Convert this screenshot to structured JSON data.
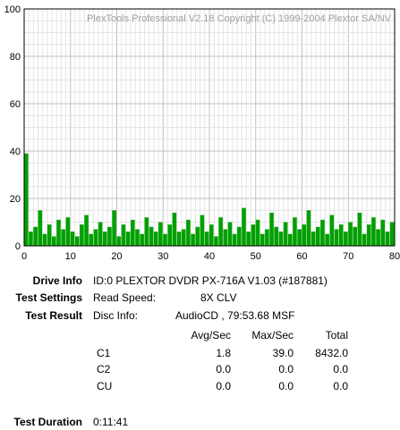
{
  "chart_data": {
    "type": "bar",
    "title": "PlexTools Professional V2.18 Copyright (C) 1999-2004 Plextor SA/NV",
    "xlabel": "",
    "ylabel": "",
    "xlim": [
      0,
      80
    ],
    "ylim": [
      0,
      100
    ],
    "x_ticks": [
      0,
      10,
      20,
      30,
      40,
      50,
      60,
      70,
      80
    ],
    "y_ticks": [
      0,
      20,
      40,
      60,
      80,
      100
    ],
    "grid": true,
    "end_marker_x": 80,
    "series": [
      {
        "color": "#00a000",
        "values": [
          39,
          6,
          8,
          15,
          5,
          9,
          4,
          11,
          7,
          12,
          6,
          4,
          9,
          13,
          5,
          7,
          10,
          6,
          8,
          15,
          4,
          9,
          6,
          11,
          7,
          5,
          12,
          8,
          6,
          10,
          5,
          9,
          14,
          6,
          7,
          11,
          5,
          8,
          13,
          6,
          9,
          4,
          12,
          7,
          10,
          5,
          8,
          16,
          6,
          9,
          11,
          5,
          7,
          14,
          8,
          6,
          10,
          5,
          12,
          7,
          9,
          15,
          6,
          8,
          11,
          5,
          13,
          7,
          9,
          6,
          10,
          8,
          14,
          5,
          9,
          12,
          7,
          11,
          6,
          10
        ]
      }
    ]
  },
  "info": {
    "drive_info_label": "Drive Info",
    "drive_info_value": "ID:0 PLEXTOR DVDR PX-716A V1.03 (#187881)",
    "test_settings_label": "Test Settings",
    "read_speed_label": "Read Speed:",
    "read_speed_value": "8X CLV",
    "test_result_label": "Test Result",
    "disc_info_label": "Disc Info:",
    "disc_info_value": "AudioCD , 79:53.68 MSF",
    "headers": {
      "avg": "Avg/Sec",
      "max": "Max/Sec",
      "total": "Total"
    },
    "rows": [
      {
        "name": "C1",
        "avg": "1.8",
        "max": "39.0",
        "total": "8432.0"
      },
      {
        "name": "C2",
        "avg": "0.0",
        "max": "0.0",
        "total": "0.0"
      },
      {
        "name": "CU",
        "avg": "0.0",
        "max": "0.0",
        "total": "0.0"
      }
    ],
    "test_duration_label": "Test Duration",
    "test_duration_value": "0:11:41"
  }
}
